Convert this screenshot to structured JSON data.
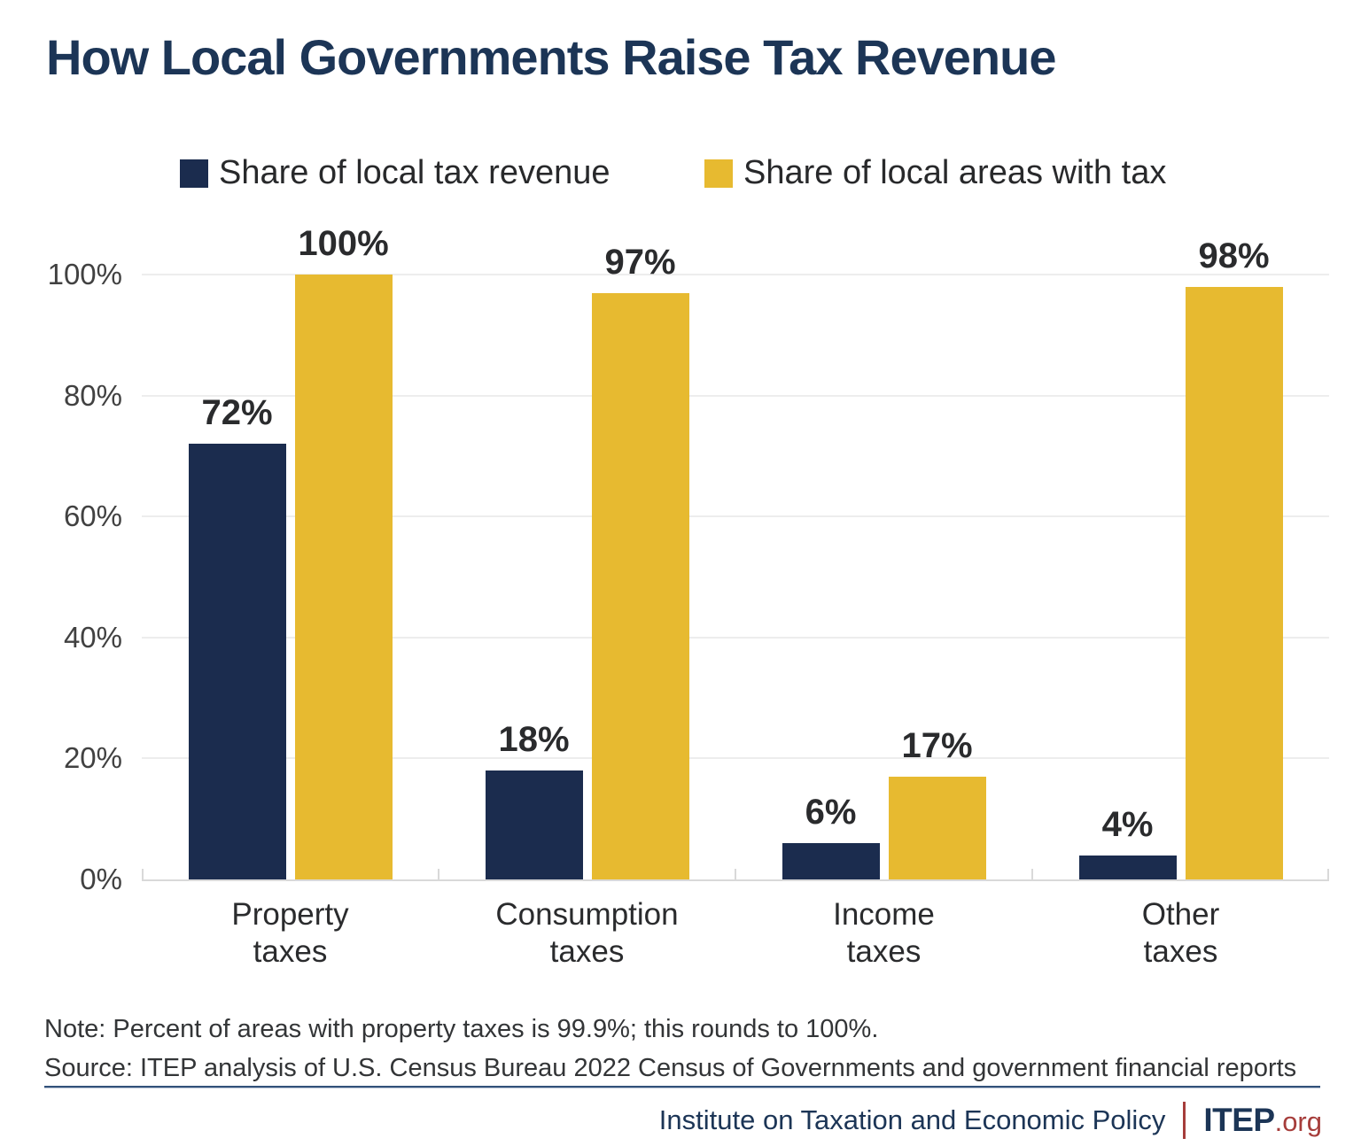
{
  "title": "How Local Governments Raise Tax Revenue",
  "legend": {
    "items": [
      {
        "label": "Share of local tax revenue",
        "color": "#1b2c4e"
      },
      {
        "label": "Share of local areas with tax",
        "color": "#e7ba30"
      }
    ]
  },
  "chart_data": {
    "type": "bar",
    "categories": [
      "Property\ntaxes",
      "Consumption\ntaxes",
      "Income\ntaxes",
      "Other\ntaxes"
    ],
    "series": [
      {
        "name": "Share of local tax revenue",
        "color": "#1b2c4e",
        "values": [
          72,
          18,
          6,
          4
        ]
      },
      {
        "name": "Share of local areas with tax",
        "color": "#e7ba30",
        "values": [
          100,
          97,
          17,
          98
        ]
      }
    ],
    "y_ticks": [
      100,
      80,
      60,
      40,
      20,
      0
    ],
    "y_tick_suffix": "%",
    "data_label_suffix": "%",
    "ylim": [
      0,
      100
    ],
    "grid": true,
    "legend_position": "top"
  },
  "notes": {
    "note": "Note: Percent of areas with property taxes is 99.9%; this rounds to 100%.",
    "source": "Source: ITEP analysis of U.S. Census Bureau 2022 Census of Governments and government financial reports"
  },
  "footer": {
    "org_name": "Institute on Taxation and Economic Policy",
    "logo_primary": "ITEP",
    "logo_suffix": ".org"
  },
  "colors": {
    "navy": "#1b2c4e",
    "gold": "#e7ba30",
    "title_navy": "#1c3556",
    "maroon": "#a63d3b",
    "text_dark": "#2a2b2d",
    "grid": "#ededed",
    "axis": "#d9d9d9"
  }
}
